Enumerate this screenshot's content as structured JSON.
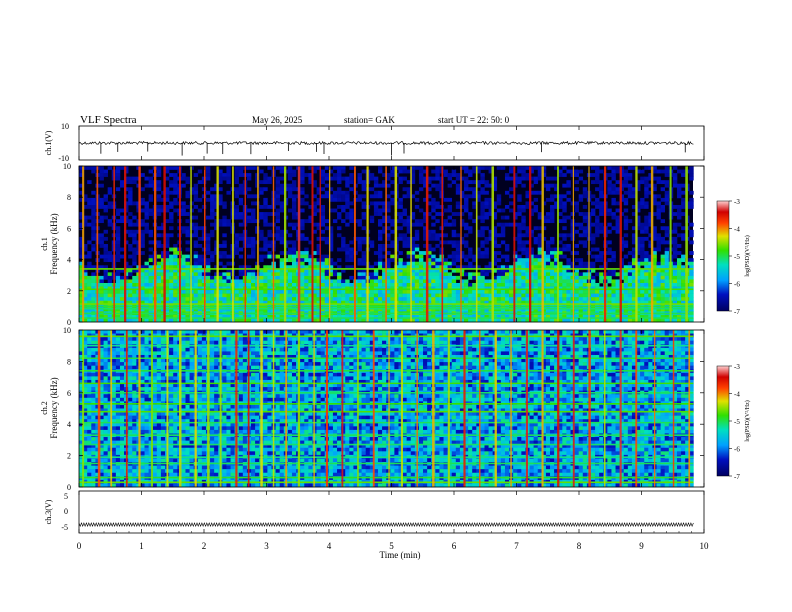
{
  "header": {
    "title": "VLF  Spectra",
    "date": "May 26, 2025",
    "station": "station= GAK",
    "start": "start  UT  =    22: 50: 0"
  },
  "chart_data": [
    {
      "type": "line",
      "panel": "ch1-waveform",
      "ylabel": "ch.1(V)",
      "ylim": [
        -10,
        10
      ],
      "y_ticks": [
        "10",
        "-10"
      ],
      "x_range_min": [
        0,
        9.83
      ],
      "baseline": 0,
      "spike_times_min": [
        0.35,
        0.62,
        1.1,
        1.65,
        2.05,
        2.3,
        2.75,
        3.35,
        3.8,
        3.92,
        5.0,
        5.2,
        7.4,
        9.7
      ],
      "spike_amplitude": -4
    },
    {
      "type": "heatmap",
      "panel": "ch1-spectrogram",
      "ylabel": "Frequency (kHz)",
      "channel_label": "ch.1",
      "ylim": [
        0,
        10
      ],
      "y_ticks": [
        "0",
        "2",
        "4",
        "6",
        "8",
        "10"
      ],
      "x_range_min": [
        0,
        9.83
      ],
      "colorbar": {
        "label": "log(PSD)(V²/Hz)",
        "range": [
          -7,
          -3
        ],
        "ticks": [
          "-3",
          "-4",
          "-5",
          "-6",
          "-7"
        ]
      },
      "background_level": -7,
      "noise_floor_top_khz": 6.5,
      "hf_band_level": -5.2,
      "horizontal_lines_khz": [
        0.25,
        0.55,
        0.85,
        1.0,
        1.15,
        2.1,
        3.4
      ],
      "vertical_streaks_min": [
        0.05,
        0.28,
        0.55,
        0.72,
        0.95,
        1.2,
        1.35,
        1.6,
        1.78,
        2.0,
        2.2,
        2.45,
        2.65,
        2.85,
        3.1,
        3.28,
        3.5,
        3.72,
        3.85,
        4.0,
        4.4,
        4.6,
        4.9,
        5.05,
        5.3,
        5.55,
        5.8,
        6.1,
        6.35,
        6.6,
        6.95,
        7.2,
        7.4,
        7.65,
        7.9,
        8.15,
        8.4,
        8.65,
        8.9,
        9.15,
        9.45,
        9.7
      ]
    },
    {
      "type": "heatmap",
      "panel": "ch2-spectrogram",
      "ylabel": "Frequency (kHz)",
      "channel_label": "ch.2",
      "ylim": [
        0,
        10
      ],
      "y_ticks": [
        "0",
        "2",
        "4",
        "6",
        "8",
        "10"
      ],
      "x_range_min": [
        0,
        9.83
      ],
      "colorbar": {
        "label": "log(PSD)(V²/Hz)",
        "range": [
          -7,
          -3
        ],
        "ticks": [
          "-3",
          "-4",
          "-5",
          "-6",
          "-7"
        ]
      },
      "background_level": -6.5,
      "horizontal_lines_khz": [
        0.3,
        0.6,
        1.5,
        1.9,
        2.7,
        3.3,
        4.1,
        4.8,
        5.3,
        6.0,
        6.6,
        7.4,
        8.2,
        9.0,
        9.6
      ],
      "vertical_streaks_min": [
        0.05,
        0.3,
        0.5,
        0.75,
        0.95,
        1.15,
        1.4,
        1.6,
        1.85,
        2.05,
        2.25,
        2.5,
        2.7,
        2.9,
        3.1,
        3.3,
        3.5,
        3.75,
        3.95,
        4.2,
        4.45,
        4.7,
        4.95,
        5.15,
        5.4,
        5.65,
        5.9,
        6.15,
        6.4,
        6.65,
        6.9,
        7.15,
        7.4,
        7.65,
        7.9,
        8.15,
        8.4,
        8.65,
        8.9,
        9.2,
        9.5,
        9.75
      ]
    },
    {
      "type": "line",
      "panel": "ch3-waveform",
      "ylabel": "ch.3(V)",
      "ylim": [
        -5,
        5
      ],
      "y_ticks": [
        "5",
        "0",
        "-5"
      ],
      "x_range_min": [
        0,
        9.83
      ],
      "baseline": -3
    }
  ],
  "x_axis": {
    "label": "Time  (min)",
    "ticks": [
      "0",
      "1",
      "2",
      "3",
      "4",
      "5",
      "6",
      "7",
      "8",
      "9",
      "10"
    ]
  }
}
